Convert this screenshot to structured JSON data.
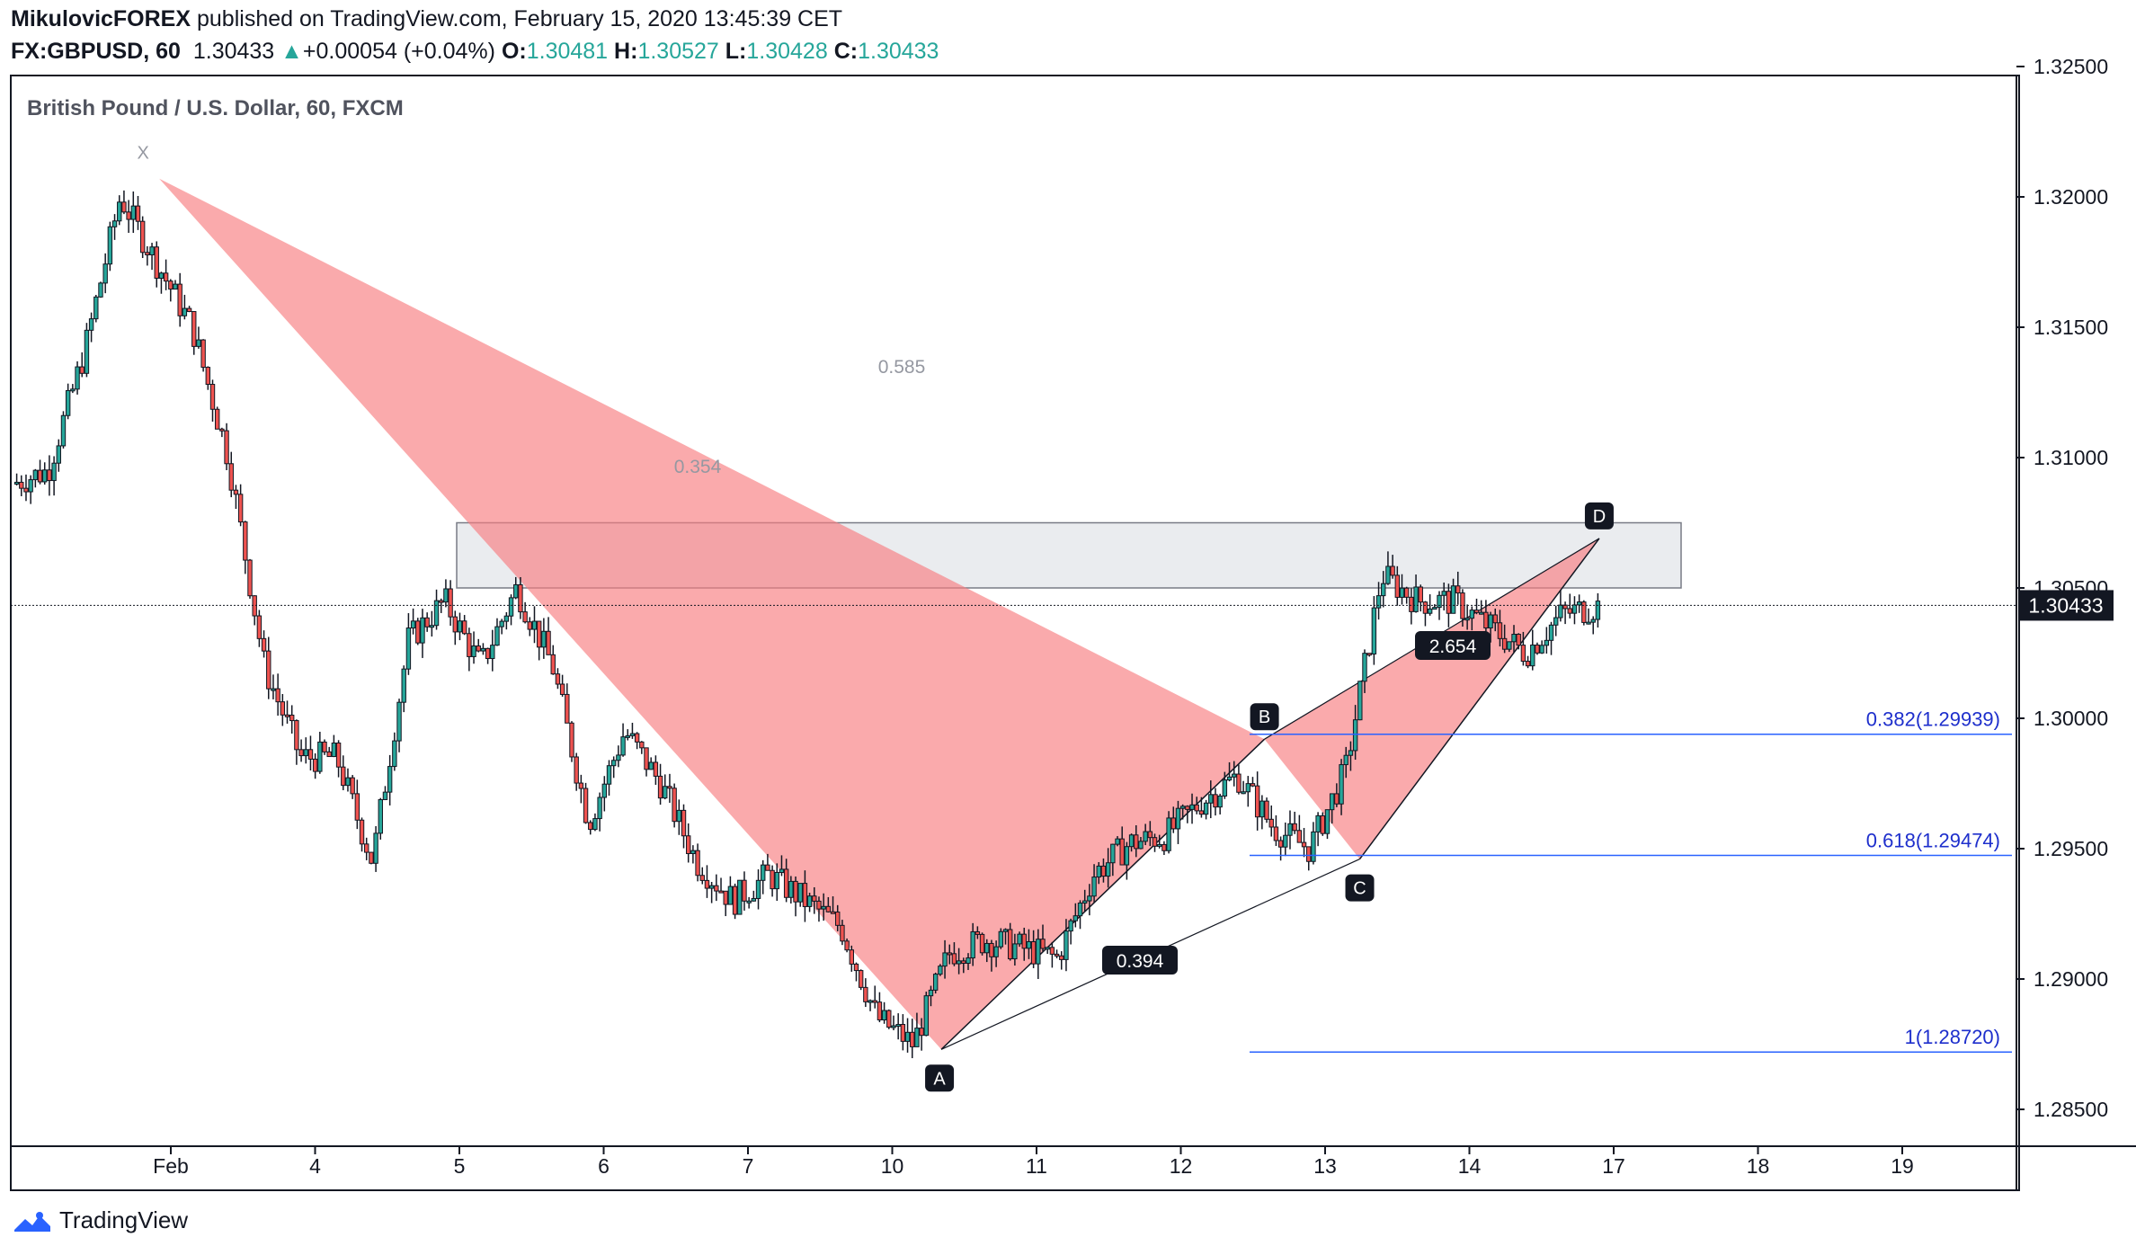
{
  "header": {
    "author": "MikulovicFOREX",
    "published_text": "published on TradingView.com, February 15, 2020 13:45:39 CET",
    "symbol": "FX:GBPUSD, 60",
    "last": "1.30433",
    "change_arrow": "▲",
    "change": "+0.00054 (+0.04%)",
    "o_label": "O:",
    "o_value": "1.30481",
    "h_label": "H:",
    "h_value": "1.30527",
    "l_label": "L:",
    "l_value": "1.30428",
    "c_label": "C:",
    "c_value": "1.30433"
  },
  "chart_title": "British Pound / U.S. Dollar, 60, FXCM",
  "footer": {
    "brand": "TradingView",
    "logo_icon": "tradingview-logo-icon"
  },
  "colors": {
    "up": "#26a69a",
    "down": "#ef5350",
    "candle_border": "#131722",
    "pattern_fill": "#f77c80",
    "fib_line": "#2962ff",
    "fib_text": "#1e2fcc",
    "zone_fill": "#d1d4dc",
    "price_label_bg": "#131722"
  },
  "chart_data": {
    "type": "candlestick",
    "title": "British Pound / U.S. Dollar, 60, FXCM",
    "ylim": [
      1.2825,
      1.3262
    ],
    "y_ticks": [
      "1.28500",
      "1.29000",
      "1.29500",
      "1.30000",
      "1.30500",
      "1.31000",
      "1.31500",
      "1.32000",
      "1.32500"
    ],
    "x_ticks": [
      "Feb",
      "4",
      "5",
      "6",
      "7",
      "10",
      "11",
      "12",
      "13",
      "14",
      "17",
      "18",
      "19"
    ],
    "last_price": 1.30433,
    "last_price_label": "1.30433",
    "pattern": {
      "points": [
        {
          "name": "X",
          "date": "Jan 31",
          "price": 1.3207
        },
        {
          "name": "A",
          "date": "Feb 10",
          "price": 1.2873
        },
        {
          "name": "B",
          "date": "Feb 12",
          "price": 1.2992
        },
        {
          "name": "C",
          "date": "Feb 13",
          "price": 1.2946
        },
        {
          "name": "D",
          "date": "Feb 17",
          "price": 1.3069
        }
      ],
      "ratios": [
        "0.585",
        "0.354",
        "0.394",
        "2.654"
      ]
    },
    "zone": {
      "price_top": 1.3075,
      "price_bottom": 1.305,
      "from": "Feb 5",
      "to": "Feb 17"
    },
    "fib_levels": [
      {
        "label": "0.382(1.29939)",
        "price": 1.29939
      },
      {
        "label": "0.618(1.29474)",
        "price": 1.29474
      },
      {
        "label": "1(1.28720)",
        "price": 1.2872
      }
    ],
    "price_path": [
      [
        1.309,
        1.3095
      ],
      [
        1.3095,
        1.3105
      ],
      [
        1.314,
        1.317
      ],
      [
        1.32,
        1.3207
      ],
      [
        1.3175,
        1.318
      ],
      [
        1.315,
        1.3155
      ],
      [
        1.31,
        1.308
      ],
      [
        1.302,
        1.301
      ],
      [
        1.2985,
        1.299
      ],
      [
        1.2985,
        1.2995
      ],
      [
        1.2945,
        1.301
      ],
      [
        1.303,
        1.304
      ],
      [
        1.3045,
        1.3035
      ],
      [
        1.302,
        1.303
      ],
      [
        1.305,
        1.3068
      ],
      [
        1.302,
        1.299
      ],
      [
        1.296,
        1.298
      ],
      [
        1.2995,
        1.2985
      ],
      [
        1.2975,
        1.296
      ],
      [
        1.2945,
        1.293
      ],
      [
        1.293,
        1.2925
      ],
      [
        1.294,
        1.2945
      ],
      [
        1.293,
        1.2945
      ],
      [
        1.292,
        1.29
      ],
      [
        1.2885,
        1.288
      ],
      [
        1.2875,
        1.2885
      ],
      [
        1.291,
        1.2935
      ],
      [
        1.2915,
        1.291
      ],
      [
        1.2912,
        1.2918
      ],
      [
        1.2908,
        1.2935
      ],
      [
        1.294,
        1.295
      ],
      [
        1.2952,
        1.2958
      ],
      [
        1.2955,
        1.2965
      ],
      [
        1.2968,
        1.2988
      ],
      [
        1.2978,
        1.2965
      ],
      [
        1.2958,
        1.2954
      ],
      [
        1.295,
        1.296
      ],
      [
        1.298,
        1.3035
      ],
      [
        1.3055,
        1.305
      ],
      [
        1.3045,
        1.304
      ],
      [
        1.3045,
        1.3055
      ],
      [
        1.3035,
        1.302
      ],
      [
        1.3025,
        1.3035
      ],
      [
        1.304,
        1.3043
      ]
    ]
  }
}
